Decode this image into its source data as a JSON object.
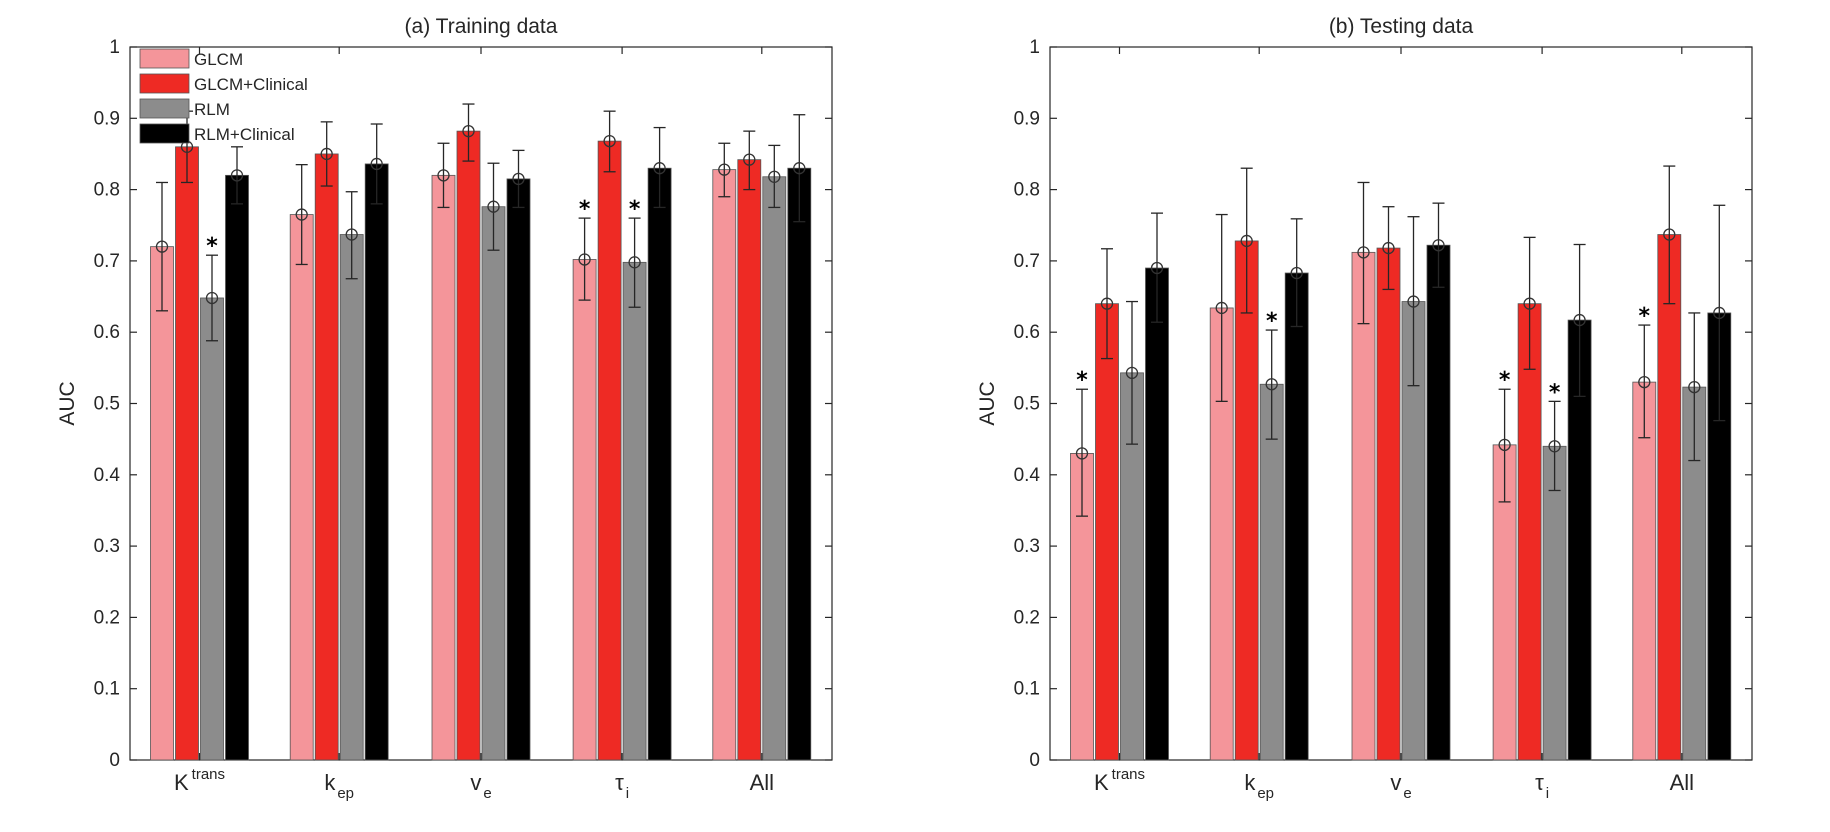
{
  "chart_data": [
    {
      "type": "bar",
      "title": "(a)  Training data",
      "xlabel": "",
      "ylabel": "AUC",
      "ylim": [
        0,
        1
      ],
      "yticks": [
        0,
        0.1,
        0.2,
        0.3,
        0.4,
        0.5,
        0.6,
        0.7,
        0.8,
        0.9,
        1
      ],
      "ytick_labels": [
        "0",
        "0.1",
        "0.2",
        "0.3",
        "0.4",
        "0.5",
        "0.6",
        "0.7",
        "0.8",
        "0.9",
        "1"
      ],
      "categories": [
        {
          "main": "K",
          "sup": "trans",
          "sub": ""
        },
        {
          "main": "k",
          "sup": "",
          "sub": "ep"
        },
        {
          "main": "v",
          "sup": "",
          "sub": "e"
        },
        {
          "main": "τ",
          "sup": "",
          "sub": "i"
        },
        {
          "main": "All",
          "sup": "",
          "sub": ""
        }
      ],
      "legend": {
        "position": "top-left",
        "show": true
      },
      "series": [
        {
          "name": "GLCM",
          "color": "#f4959a",
          "values": [
            0.72,
            0.765,
            0.82,
            0.702,
            0.828
          ],
          "err_low": [
            0.63,
            0.695,
            0.775,
            0.645,
            0.79
          ],
          "err_high": [
            0.81,
            0.835,
            0.865,
            0.76,
            0.865
          ],
          "significant": [
            false,
            false,
            false,
            true,
            false
          ]
        },
        {
          "name": "GLCM+Clinical",
          "color": "#ee2a24",
          "values": [
            0.86,
            0.85,
            0.882,
            0.868,
            0.842
          ],
          "err_low": [
            0.81,
            0.805,
            0.84,
            0.825,
            0.8
          ],
          "err_high": [
            0.91,
            0.895,
            0.92,
            0.91,
            0.882
          ],
          "significant": [
            false,
            false,
            false,
            false,
            false
          ]
        },
        {
          "name": "RLM",
          "color": "#8c8c8c",
          "values": [
            0.648,
            0.737,
            0.776,
            0.698,
            0.818
          ],
          "err_low": [
            0.588,
            0.675,
            0.715,
            0.635,
            0.775
          ],
          "err_high": [
            0.708,
            0.797,
            0.837,
            0.76,
            0.862
          ],
          "significant": [
            true,
            false,
            false,
            true,
            false
          ]
        },
        {
          "name": "RLM+Clinical",
          "color": "#000000",
          "values": [
            0.82,
            0.836,
            0.815,
            0.83,
            0.83
          ],
          "err_low": [
            0.78,
            0.78,
            0.775,
            0.775,
            0.755
          ],
          "err_high": [
            0.86,
            0.892,
            0.855,
            0.887,
            0.905
          ],
          "significant": [
            false,
            false,
            false,
            false,
            false
          ]
        }
      ]
    },
    {
      "type": "bar",
      "title": "(b)   Testing data",
      "xlabel": "",
      "ylabel": "AUC",
      "ylim": [
        0,
        1
      ],
      "yticks": [
        0,
        0.1,
        0.2,
        0.3,
        0.4,
        0.5,
        0.6,
        0.7,
        0.8,
        0.9,
        1
      ],
      "ytick_labels": [
        "0",
        "0.1",
        "0.2",
        "0.3",
        "0.4",
        "0.5",
        "0.6",
        "0.7",
        "0.8",
        "0.9",
        "1"
      ],
      "categories": [
        {
          "main": "K",
          "sup": "trans",
          "sub": ""
        },
        {
          "main": "k",
          "sup": "",
          "sub": "ep"
        },
        {
          "main": "v",
          "sup": "",
          "sub": "e"
        },
        {
          "main": "τ",
          "sup": "",
          "sub": "i"
        },
        {
          "main": "All",
          "sup": "",
          "sub": ""
        }
      ],
      "legend": {
        "position": "none",
        "show": false
      },
      "series": [
        {
          "name": "GLCM",
          "color": "#f4959a",
          "values": [
            0.43,
            0.634,
            0.712,
            0.442,
            0.53
          ],
          "err_low": [
            0.342,
            0.503,
            0.612,
            0.362,
            0.452
          ],
          "err_high": [
            0.52,
            0.765,
            0.81,
            0.52,
            0.61
          ],
          "significant": [
            true,
            false,
            false,
            true,
            true
          ]
        },
        {
          "name": "GLCM+Clinical",
          "color": "#ee2a24",
          "values": [
            0.64,
            0.728,
            0.718,
            0.64,
            0.737
          ],
          "err_low": [
            0.563,
            0.627,
            0.66,
            0.548,
            0.64
          ],
          "err_high": [
            0.717,
            0.83,
            0.776,
            0.733,
            0.833
          ],
          "significant": [
            false,
            false,
            false,
            false,
            false
          ]
        },
        {
          "name": "RLM",
          "color": "#8c8c8c",
          "values": [
            0.543,
            0.527,
            0.643,
            0.44,
            0.523
          ],
          "err_low": [
            0.443,
            0.45,
            0.525,
            0.378,
            0.42
          ],
          "err_high": [
            0.643,
            0.603,
            0.762,
            0.503,
            0.627
          ],
          "significant": [
            false,
            true,
            false,
            true,
            false
          ]
        },
        {
          "name": "RLM+Clinical",
          "color": "#000000",
          "values": [
            0.69,
            0.683,
            0.722,
            0.617,
            0.627
          ],
          "err_low": [
            0.614,
            0.608,
            0.663,
            0.51,
            0.476
          ],
          "err_high": [
            0.767,
            0.759,
            0.781,
            0.723,
            0.778
          ],
          "significant": [
            false,
            false,
            false,
            false,
            false
          ]
        }
      ]
    }
  ]
}
